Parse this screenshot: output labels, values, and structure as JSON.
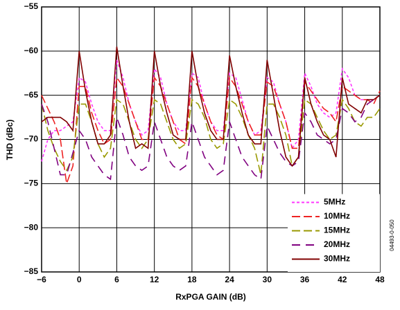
{
  "chart_data": {
    "type": "line",
    "x_label": "RxPGA GAIN (dB)",
    "y_label": "THD (dBc)",
    "annotation": "04493-0-050",
    "xlim": [
      -6,
      48
    ],
    "ylim": [
      -85,
      -55
    ],
    "xticks": [
      {
        "value": -6,
        "label": "−6"
      },
      0,
      6,
      12,
      18,
      24,
      30,
      36,
      42,
      48
    ],
    "yticks": [
      {
        "value": -55,
        "label": "−55"
      },
      {
        "value": -60,
        "label": "−60"
      },
      {
        "value": -65,
        "label": "−65"
      },
      {
        "value": -70,
        "label": "−70"
      },
      {
        "value": -75,
        "label": "−75"
      },
      {
        "value": -80,
        "label": "−80"
      },
      {
        "value": -85,
        "label": "−85"
      }
    ],
    "grid": true,
    "legend": "lower right",
    "x": [
      -6,
      -5,
      -4,
      -3,
      -2,
      -1,
      0,
      1,
      2,
      3,
      4,
      5,
      6,
      7,
      8,
      9,
      10,
      11,
      12,
      13,
      14,
      15,
      16,
      17,
      18,
      19,
      20,
      21,
      22,
      23,
      24,
      25,
      26,
      27,
      28,
      29,
      30,
      31,
      32,
      33,
      34,
      35,
      36,
      37,
      38,
      39,
      40,
      41,
      42,
      43,
      44,
      45,
      46,
      47,
      48
    ],
    "series": [
      {
        "name": "5MHz",
        "color": "#ff33ff",
        "dash": "4,3",
        "values": [
          -72.5,
          -70,
          -69,
          -69,
          -68.5,
          -68,
          -63,
          -63.5,
          -66,
          -68,
          -69,
          -69,
          -61,
          -63,
          -66,
          -68,
          -69.5,
          -69,
          -62,
          -63,
          -66,
          -68,
          -69,
          -69,
          -62.5,
          -63,
          -66,
          -68,
          -69,
          -69,
          -62.5,
          -63,
          -65.5,
          -68,
          -69.5,
          -69,
          -63,
          -63.5,
          -66,
          -68,
          -71,
          -70,
          -62.5,
          -64,
          -66,
          -67,
          -67.5,
          -67,
          -62,
          -63,
          -65,
          -65.5,
          -65.5,
          -65.5,
          -65
        ]
      },
      {
        "name": "10MHz",
        "color": "#ee2222",
        "dash": "12,5",
        "values": [
          -65,
          -66.5,
          -68,
          -70,
          -75,
          -73,
          -64,
          -64,
          -67,
          -69,
          -70.5,
          -70,
          -63,
          -64,
          -66,
          -68,
          -70,
          -70,
          -63,
          -64,
          -66,
          -68,
          -70,
          -70.5,
          -63,
          -64,
          -66,
          -68,
          -69.5,
          -70,
          -63,
          -64,
          -66,
          -68,
          -69.5,
          -69.5,
          -63.5,
          -64,
          -66,
          -68,
          -71,
          -71,
          -63.5,
          -64.5,
          -65.5,
          -66.5,
          -67,
          -68,
          -64,
          -64.5,
          -65,
          -65.5,
          -65.5,
          -66,
          -64.5
        ]
      },
      {
        "name": "15MHz",
        "color": "#999900",
        "dash": "12,5",
        "values": [
          -66,
          -69,
          -71,
          -72.5,
          -73.5,
          -72,
          -66,
          -66,
          -68,
          -70.5,
          -72,
          -71,
          -65.5,
          -66,
          -68,
          -70,
          -71,
          -70,
          -65.5,
          -66,
          -68,
          -70,
          -71,
          -70.5,
          -65.5,
          -66,
          -67.5,
          -70,
          -71,
          -70.5,
          -65.5,
          -66,
          -67.5,
          -69.5,
          -71,
          -74,
          -66,
          -66,
          -67.5,
          -69.5,
          -73,
          -72,
          -65.5,
          -66,
          -67.5,
          -69,
          -70,
          -69.5,
          -65.5,
          -66.5,
          -68,
          -68.5,
          -67.5,
          -67.5,
          -66.5
        ]
      },
      {
        "name": "20MHz",
        "color": "#800080",
        "dash": "12,8",
        "values": [
          -66,
          -68,
          -71,
          -74,
          -74,
          -71.5,
          -69,
          -70,
          -72,
          -73,
          -74,
          -74.5,
          -67.5,
          -69.5,
          -72,
          -73,
          -73.5,
          -73,
          -68,
          -70,
          -72,
          -73,
          -73.5,
          -73,
          -68,
          -70,
          -72,
          -73,
          -74,
          -73.5,
          -68,
          -70,
          -72,
          -73,
          -74,
          -74.5,
          -68.5,
          -70,
          -71.5,
          -72.5,
          -73,
          -72.5,
          -67,
          -68,
          -69.5,
          -70,
          -70.5,
          -70,
          -66.5,
          -67,
          -68,
          -67.5,
          -66,
          -65.5,
          -65
        ]
      },
      {
        "name": "30MHz",
        "color": "#800000",
        "dash": "none",
        "values": [
          -68,
          -67.5,
          -67.5,
          -67.5,
          -68,
          -69,
          -60,
          -64.5,
          -68,
          -70.5,
          -70.5,
          -69.5,
          -59.5,
          -64,
          -68,
          -71,
          -70.5,
          -71,
          -60,
          -64,
          -67,
          -69.5,
          -70,
          -70,
          -60,
          -64,
          -67,
          -69,
          -70,
          -70,
          -60.5,
          -64,
          -67,
          -69.5,
          -70.5,
          -70.5,
          -61,
          -65,
          -69,
          -72,
          -73,
          -72,
          -63,
          -66,
          -68,
          -69.5,
          -70,
          -72,
          -63,
          -66,
          -66.5,
          -67,
          -65.5,
          -65.5,
          -65
        ]
      }
    ]
  }
}
